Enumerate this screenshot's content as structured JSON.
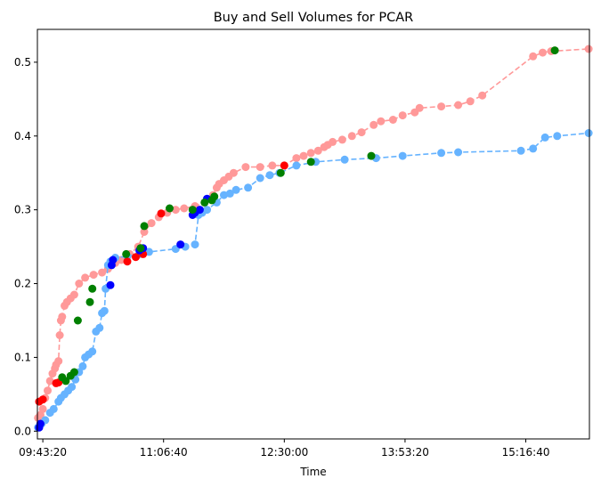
{
  "chart_data": {
    "type": "scatter",
    "title": "Buy and Sell Volumes for PCAR",
    "xlabel": "Time",
    "ylabel": "",
    "x_unit": "seconds_since_midnight",
    "xlim": [
      34775,
      57635
    ],
    "ylim": [
      -0.0105,
      0.5445
    ],
    "x_ticks": [
      {
        "value": 35000,
        "label": "09:43:20"
      },
      {
        "value": 40000,
        "label": "11:06:40"
      },
      {
        "value": 45000,
        "label": "12:30:00"
      },
      {
        "value": 50000,
        "label": "13:53:20"
      },
      {
        "value": 55000,
        "label": "15:16:40"
      }
    ],
    "y_ticks": [
      {
        "value": 0.0,
        "label": "0.0"
      },
      {
        "value": 0.1,
        "label": "0.1"
      },
      {
        "value": 0.2,
        "label": "0.2"
      },
      {
        "value": 0.3,
        "label": "0.3"
      },
      {
        "value": 0.4,
        "label": "0.4"
      },
      {
        "value": 0.5,
        "label": "0.5"
      }
    ],
    "grid": false,
    "legend": "none",
    "series": [
      {
        "color": "#ff9999",
        "style": "dashed-line-with-markers",
        "points": [
          [
            34800,
            0.018
          ],
          [
            34900,
            0.022
          ],
          [
            35000,
            0.03
          ],
          [
            35100,
            0.045
          ],
          [
            35200,
            0.055
          ],
          [
            35300,
            0.068
          ],
          [
            35400,
            0.078
          ],
          [
            35500,
            0.085
          ],
          [
            35550,
            0.09
          ],
          [
            35650,
            0.095
          ],
          [
            35700,
            0.13
          ],
          [
            35750,
            0.15
          ],
          [
            35800,
            0.155
          ],
          [
            35900,
            0.17
          ],
          [
            36000,
            0.175
          ],
          [
            36150,
            0.18
          ],
          [
            36300,
            0.185
          ],
          [
            36500,
            0.2
          ],
          [
            36750,
            0.208
          ],
          [
            37100,
            0.212
          ],
          [
            37450,
            0.215
          ],
          [
            37700,
            0.22
          ],
          [
            38000,
            0.228
          ],
          [
            38250,
            0.232
          ],
          [
            38600,
            0.24
          ],
          [
            38950,
            0.25
          ],
          [
            39200,
            0.27
          ],
          [
            39500,
            0.282
          ],
          [
            39800,
            0.29
          ],
          [
            40150,
            0.296
          ],
          [
            40500,
            0.3
          ],
          [
            40850,
            0.302
          ],
          [
            41300,
            0.305
          ],
          [
            41700,
            0.31
          ],
          [
            42050,
            0.32
          ],
          [
            42200,
            0.33
          ],
          [
            42300,
            0.335
          ],
          [
            42500,
            0.34
          ],
          [
            42700,
            0.345
          ],
          [
            42900,
            0.35
          ],
          [
            43400,
            0.358
          ],
          [
            44000,
            0.358
          ],
          [
            44500,
            0.36
          ],
          [
            45000,
            0.36
          ],
          [
            45500,
            0.37
          ],
          [
            45800,
            0.373
          ],
          [
            46100,
            0.377
          ],
          [
            46400,
            0.38
          ],
          [
            46650,
            0.385
          ],
          [
            46800,
            0.388
          ],
          [
            47000,
            0.392
          ],
          [
            47400,
            0.395
          ],
          [
            47800,
            0.4
          ],
          [
            48200,
            0.405
          ],
          [
            48700,
            0.415
          ],
          [
            49000,
            0.42
          ],
          [
            49500,
            0.422
          ],
          [
            49900,
            0.428
          ],
          [
            50400,
            0.432
          ],
          [
            50600,
            0.438
          ],
          [
            51500,
            0.44
          ],
          [
            52200,
            0.442
          ],
          [
            52700,
            0.447
          ],
          [
            53200,
            0.455
          ],
          [
            55300,
            0.508
          ],
          [
            55700,
            0.513
          ],
          [
            56050,
            0.515
          ],
          [
            57600,
            0.518
          ]
        ]
      },
      {
        "color": "#66b3ff",
        "style": "dashed-line-with-markers",
        "points": [
          [
            34800,
            0.005
          ],
          [
            34950,
            0.01
          ],
          [
            35100,
            0.015
          ],
          [
            35300,
            0.025
          ],
          [
            35450,
            0.03
          ],
          [
            35650,
            0.04
          ],
          [
            35750,
            0.045
          ],
          [
            35900,
            0.05
          ],
          [
            36050,
            0.055
          ],
          [
            36200,
            0.06
          ],
          [
            36350,
            0.07
          ],
          [
            36500,
            0.08
          ],
          [
            36650,
            0.088
          ],
          [
            36750,
            0.1
          ],
          [
            36900,
            0.104
          ],
          [
            37050,
            0.108
          ],
          [
            37200,
            0.135
          ],
          [
            37350,
            0.14
          ],
          [
            37450,
            0.16
          ],
          [
            37550,
            0.163
          ],
          [
            37600,
            0.193
          ],
          [
            37700,
            0.225
          ],
          [
            37800,
            0.23
          ],
          [
            38000,
            0.235
          ],
          [
            38500,
            0.237
          ],
          [
            39000,
            0.24
          ],
          [
            39400,
            0.243
          ],
          [
            40500,
            0.247
          ],
          [
            40900,
            0.25
          ],
          [
            41300,
            0.253
          ],
          [
            41450,
            0.293
          ],
          [
            41600,
            0.296
          ],
          [
            41800,
            0.3
          ],
          [
            42200,
            0.31
          ],
          [
            42500,
            0.32
          ],
          [
            42750,
            0.322
          ],
          [
            43000,
            0.327
          ],
          [
            43500,
            0.33
          ],
          [
            44000,
            0.343
          ],
          [
            44400,
            0.347
          ],
          [
            44800,
            0.35
          ],
          [
            45500,
            0.36
          ],
          [
            46300,
            0.365
          ],
          [
            47500,
            0.368
          ],
          [
            48800,
            0.37
          ],
          [
            49900,
            0.373
          ],
          [
            51500,
            0.377
          ],
          [
            52200,
            0.378
          ],
          [
            54800,
            0.38
          ],
          [
            55300,
            0.383
          ],
          [
            55800,
            0.398
          ],
          [
            56300,
            0.4
          ],
          [
            57600,
            0.404
          ]
        ]
      }
    ],
    "markers": [
      {
        "color": "#ff0000",
        "points": [
          [
            34850,
            0.04
          ],
          [
            35000,
            0.043
          ],
          [
            35550,
            0.065
          ],
          [
            35650,
            0.066
          ],
          [
            38500,
            0.23
          ],
          [
            38850,
            0.236
          ],
          [
            39150,
            0.24
          ],
          [
            39900,
            0.295
          ],
          [
            45000,
            0.36
          ]
        ]
      },
      {
        "color": "#0000ff",
        "points": [
          [
            34850,
            0.005
          ],
          [
            34900,
            0.01
          ],
          [
            37800,
            0.198
          ],
          [
            37850,
            0.225
          ],
          [
            37900,
            0.232
          ],
          [
            39000,
            0.245
          ],
          [
            39150,
            0.248
          ],
          [
            40700,
            0.253
          ],
          [
            41200,
            0.293
          ],
          [
            41300,
            0.296
          ],
          [
            41500,
            0.3
          ],
          [
            41800,
            0.315
          ]
        ]
      },
      {
        "color": "#008000",
        "points": [
          [
            35800,
            0.073
          ],
          [
            35950,
            0.068
          ],
          [
            36150,
            0.075
          ],
          [
            36300,
            0.08
          ],
          [
            36450,
            0.15
          ],
          [
            36950,
            0.175
          ],
          [
            37050,
            0.193
          ],
          [
            38450,
            0.24
          ],
          [
            39050,
            0.248
          ],
          [
            39200,
            0.278
          ],
          [
            40250,
            0.302
          ],
          [
            41200,
            0.3
          ],
          [
            41700,
            0.31
          ],
          [
            42000,
            0.313
          ],
          [
            42100,
            0.318
          ],
          [
            44850,
            0.35
          ],
          [
            46100,
            0.365
          ],
          [
            48600,
            0.373
          ],
          [
            56200,
            0.516
          ]
        ]
      }
    ]
  }
}
